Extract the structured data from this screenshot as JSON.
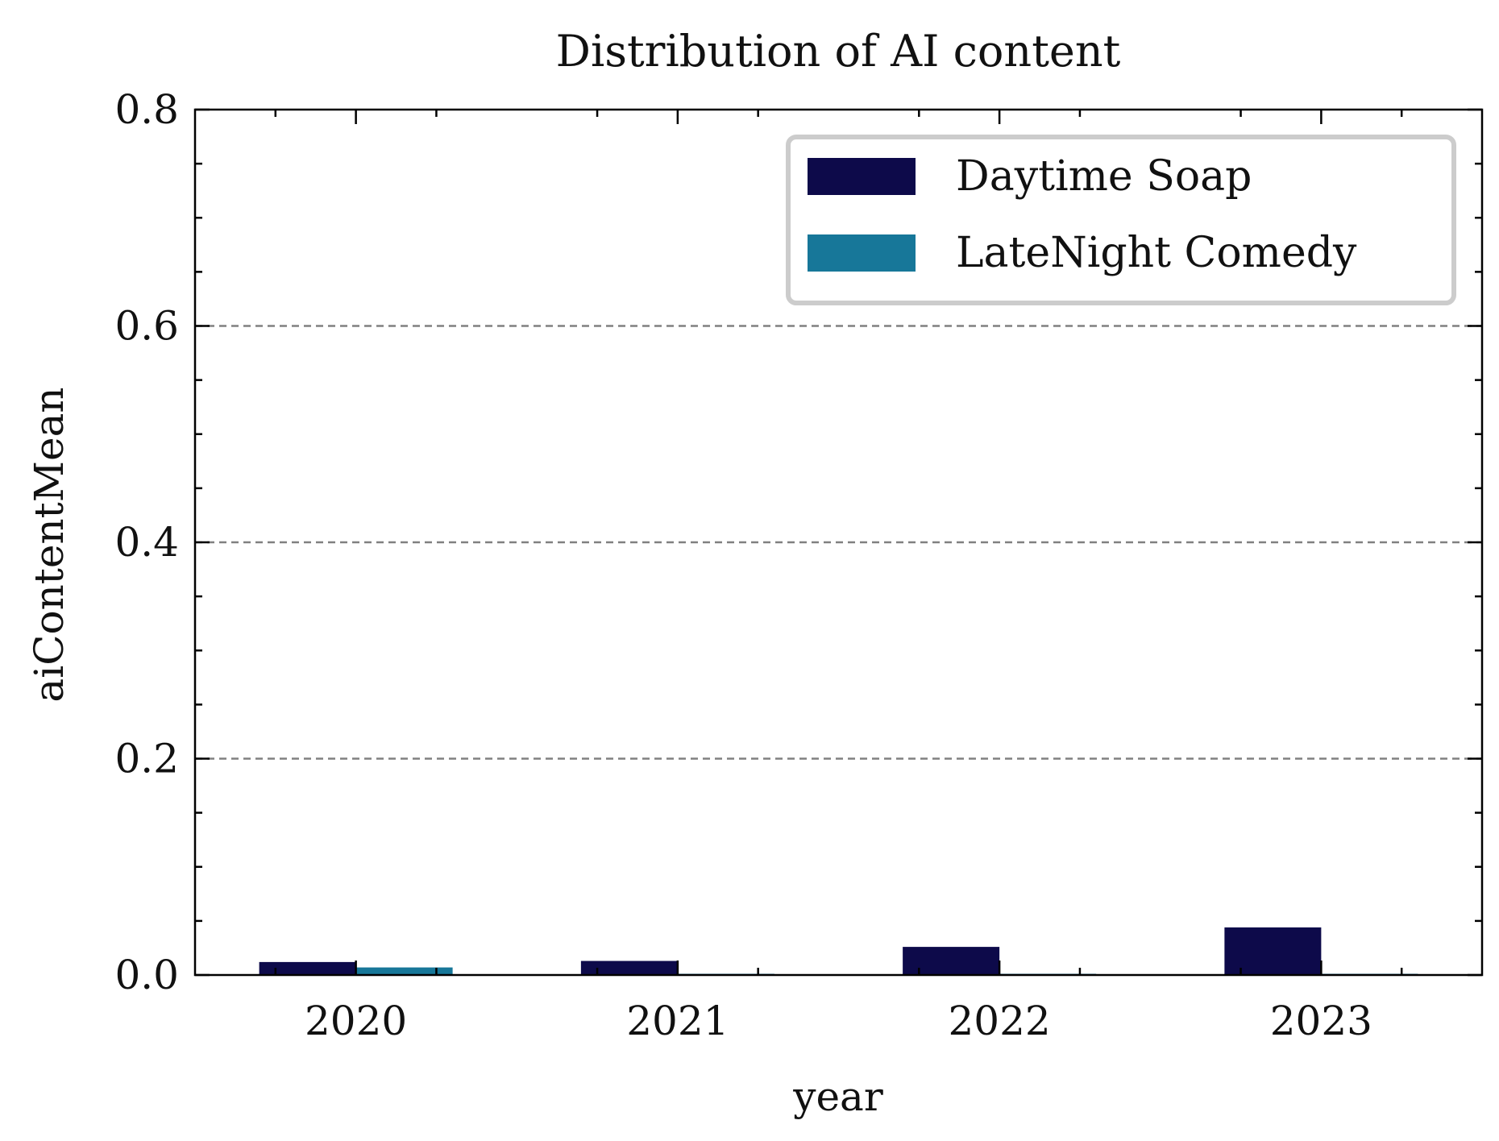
{
  "chart_data": {
    "type": "bar",
    "title": "Distribution of AI content",
    "xlabel": "year",
    "ylabel": "aiContentMean",
    "categories": [
      "2020",
      "2021",
      "2022",
      "2023"
    ],
    "series": [
      {
        "name": "Daytime Soap",
        "values": [
          0.012,
          0.013,
          0.026,
          0.044
        ],
        "color": "#0d0a4a"
      },
      {
        "name": "LateNight Comedy",
        "values": [
          0.007,
          0.001,
          0.001,
          0.001
        ],
        "color": "#177799"
      }
    ],
    "ylim": [
      0,
      0.8
    ],
    "yticks": [
      "0.0",
      "0.2",
      "0.4",
      "0.6",
      "0.8"
    ],
    "grid": "y-dashed",
    "legend_position": "top-right"
  }
}
